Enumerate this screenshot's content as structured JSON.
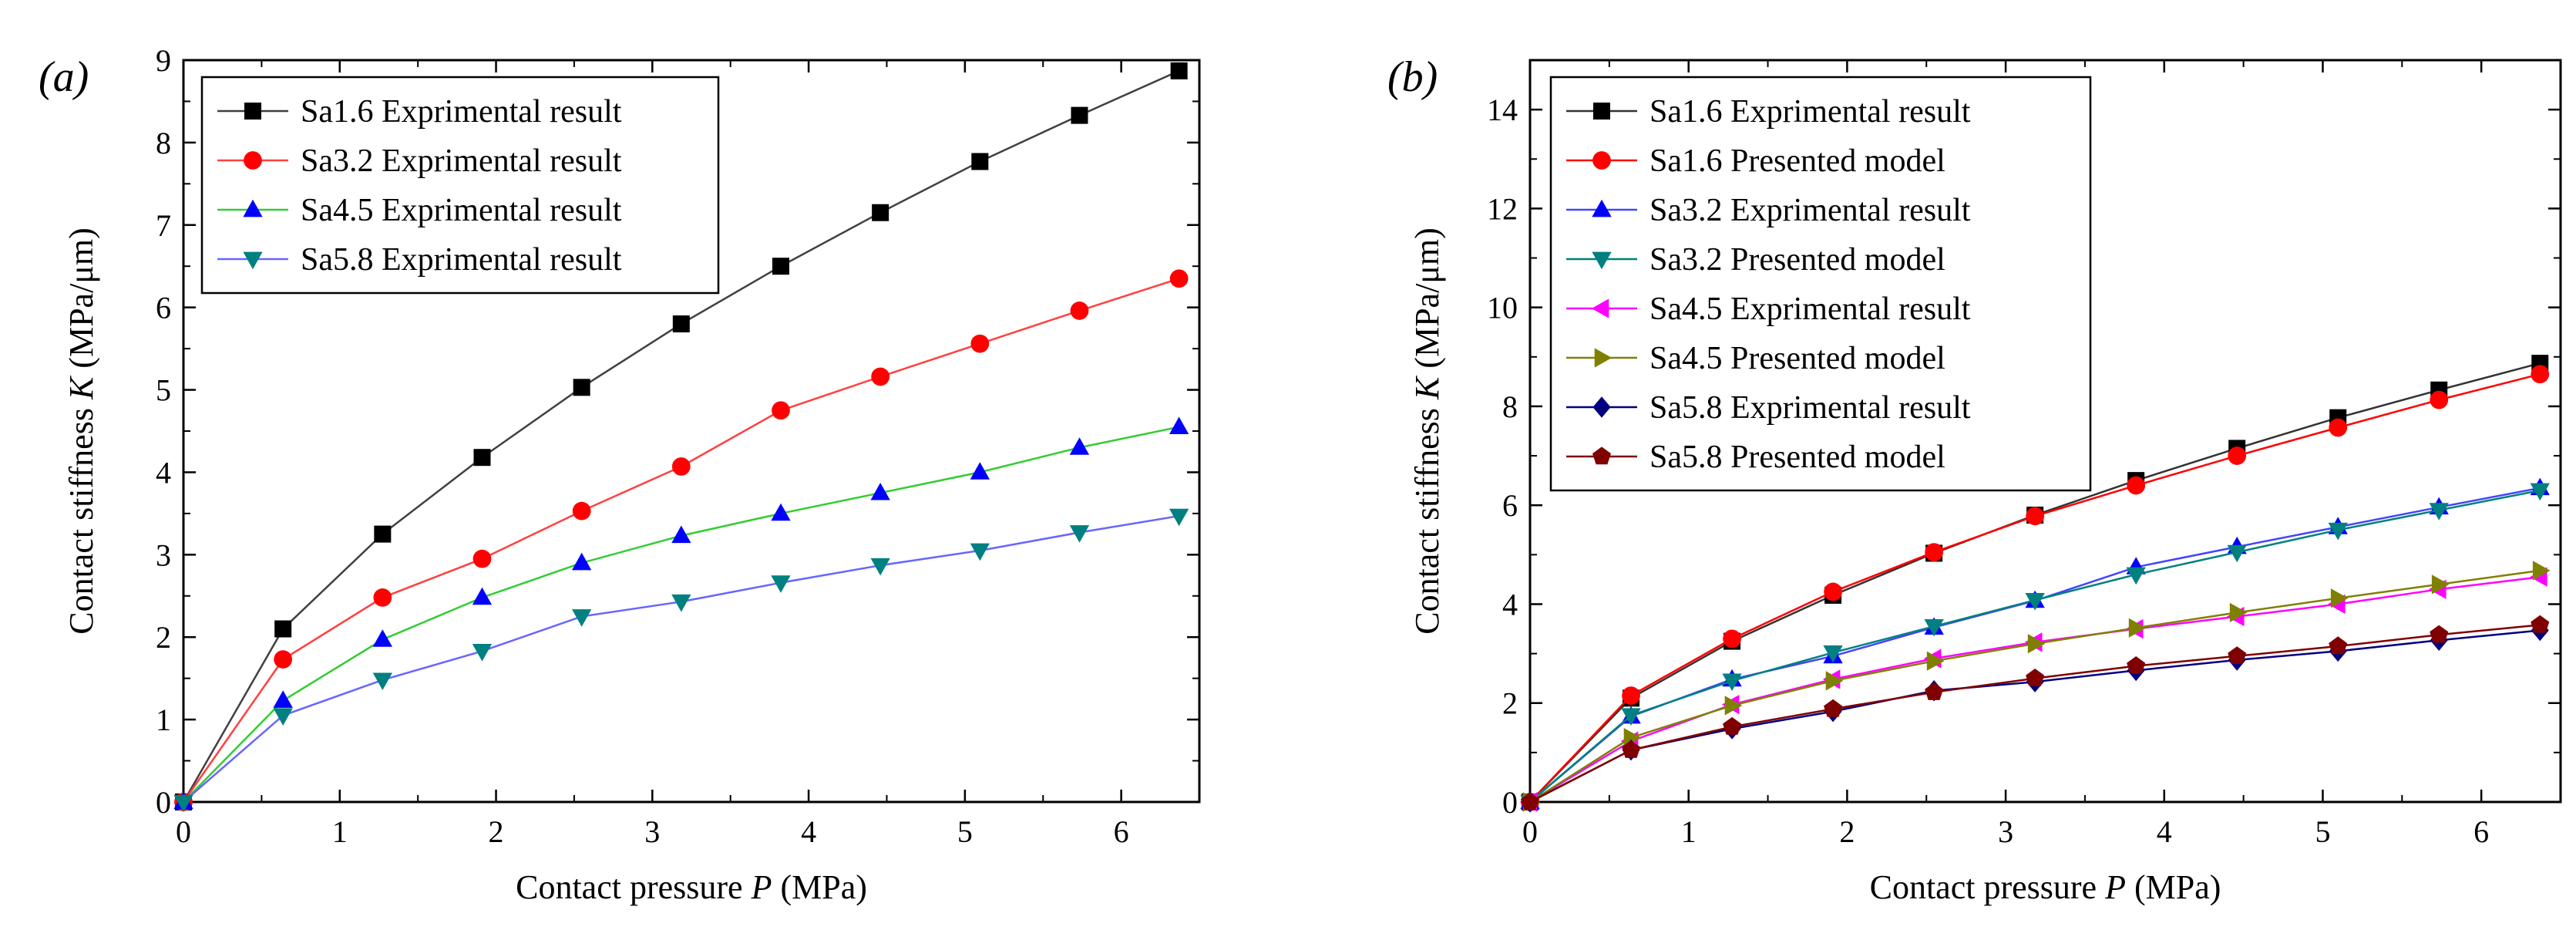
{
  "chart_data": [
    {
      "type": "line",
      "panel_label": "(a)",
      "xlabel": "Contact pressure P (MPa)",
      "ylabel": "Contact stiffness K (MPa/μm)",
      "xlabel_parts": {
        "pre": "Contact pressure ",
        "var": "P",
        "post": " (MPa)"
      },
      "ylabel_parts": {
        "pre": "Contact stiffness ",
        "var": "K",
        "post": " (MPa/μm)"
      },
      "xlim": [
        0,
        6.5
      ],
      "ylim": [
        0,
        9
      ],
      "xticks": [
        "0",
        "1",
        "2",
        "3",
        "4",
        "5",
        "6"
      ],
      "yticks": [
        "0",
        "1",
        "2",
        "3",
        "4",
        "5",
        "6",
        "7",
        "8",
        "9"
      ],
      "grid": false,
      "legend_position": "top-left",
      "x": [
        0,
        0.637,
        1.274,
        1.911,
        2.548,
        3.185,
        3.822,
        4.459,
        5.096,
        5.733,
        6.37
      ],
      "series": [
        {
          "name": "Sa1.6 Exprimental result",
          "marker": "square",
          "marker_color": "#000000",
          "line_color": "#404040",
          "values": [
            0,
            2.1,
            3.25,
            4.18,
            5.03,
            5.8,
            6.5,
            7.15,
            7.77,
            8.33,
            8.87
          ]
        },
        {
          "name": "Sa3.2 Exprimental result",
          "marker": "circle",
          "marker_color": "#ff0000",
          "line_color": "#ff4040",
          "values": [
            0,
            1.73,
            2.48,
            2.95,
            3.53,
            4.07,
            4.75,
            5.16,
            5.56,
            5.96,
            6.35
          ]
        },
        {
          "name": "Sa4.5 Exprimental result",
          "marker": "triangle-up",
          "marker_color": "#0000ff",
          "line_color": "#33cc33",
          "values": [
            0,
            1.23,
            1.97,
            2.48,
            2.9,
            3.23,
            3.5,
            3.75,
            4.0,
            4.3,
            4.55
          ]
        },
        {
          "name": "Sa5.8 Exprimental result",
          "marker": "triangle-down",
          "marker_color": "#008080",
          "line_color": "#6666ff",
          "values": [
            0,
            1.05,
            1.48,
            1.83,
            2.25,
            2.43,
            2.66,
            2.87,
            3.05,
            3.27,
            3.47
          ]
        }
      ]
    },
    {
      "type": "line",
      "panel_label": "(b)",
      "xlabel": "Contact pressure P (MPa)",
      "ylabel": "Contact stiffness K (MPa/μm)",
      "xlabel_parts": {
        "pre": "Contact pressure ",
        "var": "P",
        "post": " (MPa)"
      },
      "ylabel_parts": {
        "pre": "Contact stiffness ",
        "var": "K",
        "post": " (MPa/μm)"
      },
      "xlim": [
        0,
        6.5
      ],
      "ylim": [
        0,
        15
      ],
      "xticks": [
        "0",
        "1",
        "2",
        "3",
        "4",
        "5",
        "6"
      ],
      "yticks": [
        "0",
        "2",
        "4",
        "6",
        "8",
        "10",
        "12",
        "14"
      ],
      "grid": false,
      "legend_position": "top-left",
      "x": [
        0,
        0.637,
        1.274,
        1.911,
        2.548,
        3.185,
        3.822,
        4.459,
        5.096,
        5.733,
        6.37
      ],
      "series": [
        {
          "name": "Sa1.6 Exprimental result",
          "marker": "square",
          "marker_color": "#000000",
          "line_color": "#333333",
          "values": [
            0,
            2.1,
            3.25,
            4.18,
            5.03,
            5.8,
            6.5,
            7.15,
            7.77,
            8.33,
            8.87
          ]
        },
        {
          "name": "Sa1.6 Presented model",
          "marker": "circle",
          "marker_color": "#ff0000",
          "line_color": "#ff0000",
          "values": [
            0,
            2.15,
            3.3,
            4.25,
            5.05,
            5.78,
            6.4,
            7.0,
            7.57,
            8.13,
            8.65
          ]
        },
        {
          "name": "Sa3.2 Exprimental result",
          "marker": "triangle-up",
          "marker_color": "#0000ff",
          "line_color": "#4444ff",
          "values": [
            0,
            1.73,
            2.48,
            2.95,
            3.53,
            4.07,
            4.75,
            5.16,
            5.56,
            5.96,
            6.35
          ]
        },
        {
          "name": "Sa3.2 Presented model",
          "marker": "triangle-down",
          "marker_color": "#008080",
          "line_color": "#008080",
          "values": [
            0,
            1.75,
            2.45,
            3.02,
            3.55,
            4.08,
            4.6,
            5.05,
            5.5,
            5.9,
            6.3
          ]
        },
        {
          "name": "Sa4.5 Exprimental result",
          "marker": "triangle-left",
          "marker_color": "#ff00ff",
          "line_color": "#ff00ff",
          "values": [
            0,
            1.23,
            1.97,
            2.48,
            2.9,
            3.23,
            3.5,
            3.75,
            4.0,
            4.3,
            4.55
          ]
        },
        {
          "name": "Sa4.5 Presented model",
          "marker": "triangle-right",
          "marker_color": "#808000",
          "line_color": "#808000",
          "values": [
            0,
            1.3,
            1.95,
            2.45,
            2.85,
            3.2,
            3.52,
            3.83,
            4.12,
            4.4,
            4.68
          ]
        },
        {
          "name": "Sa5.8 Exprimental result",
          "marker": "diamond",
          "marker_color": "#000080",
          "line_color": "#000080",
          "values": [
            0,
            1.05,
            1.48,
            1.83,
            2.25,
            2.43,
            2.66,
            2.87,
            3.05,
            3.27,
            3.47
          ]
        },
        {
          "name": "Sa5.8 Presented model",
          "marker": "pentagon",
          "marker_color": "#800000",
          "line_color": "#800000",
          "values": [
            0,
            1.05,
            1.52,
            1.88,
            2.22,
            2.5,
            2.75,
            2.95,
            3.15,
            3.38,
            3.58
          ]
        }
      ]
    }
  ]
}
